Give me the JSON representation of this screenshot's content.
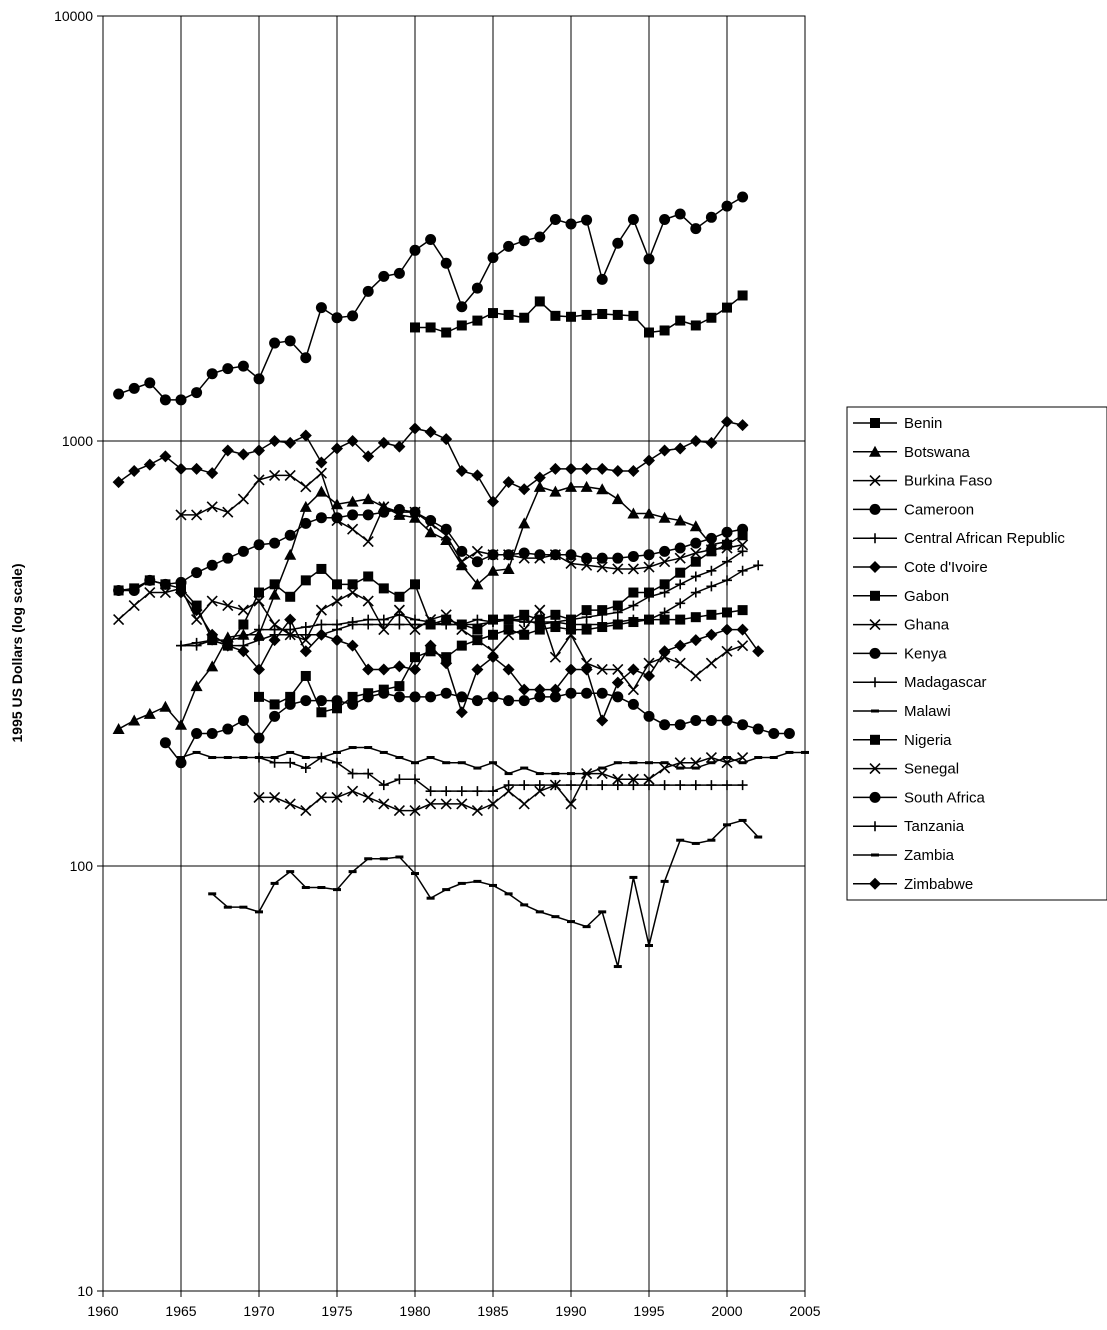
{
  "chart_data": {
    "type": "line",
    "title": "",
    "xlabel": "",
    "ylabel": "1995 US Dollars (log scale)",
    "xlim": [
      1960,
      2005
    ],
    "ylim": [
      10,
      10000
    ],
    "y_scale": "log",
    "x_ticks": [
      "1960",
      "1965",
      "1970",
      "1975",
      "1980",
      "1985",
      "1990",
      "1995",
      "2000",
      "2005"
    ],
    "y_ticks": [
      "10",
      "100",
      "1000",
      "10000"
    ],
    "grid": "vertical every 5 years, horizontal at powers of ten",
    "legend_position": "right",
    "series": [
      {
        "name": "Benin",
        "marker": "square",
        "x_start": 1980,
        "values": [
          1850,
          1850,
          1800,
          1870,
          1920,
          2000,
          1980,
          1950,
          2130,
          1970,
          1960,
          1980,
          1990,
          1980,
          1970,
          1800,
          1820,
          1920,
          1870,
          1950,
          2060,
          2200
        ]
      },
      {
        "name": "Botswana",
        "marker": "triangle",
        "x_start": 1961,
        "values": [
          210,
          220,
          228,
          237,
          215,
          265,
          295,
          345,
          350,
          350,
          435,
          540,
          700,
          760,
          710,
          720,
          730,
          700,
          670,
          660,
          610,
          585,
          510,
          460,
          495,
          500,
          640,
          780,
          760,
          780,
          780,
          770,
          730,
          675,
          675,
          660,
          650,
          630,
          570,
          580
        ]
      },
      {
        "name": "Burkina Faso",
        "marker": "x",
        "x_start": 1965,
        "values": [
          670,
          670,
          700,
          680,
          730,
          810,
          830,
          830,
          780,
          840,
          650,
          620,
          580,
          700,
          680,
          680,
          640,
          600,
          520,
          550,
          540,
          540,
          530,
          530,
          540,
          515,
          510,
          505,
          500,
          500,
          505,
          520,
          530,
          545,
          555,
          560,
          570
        ]
      },
      {
        "name": "Cameroon",
        "marker": "circle",
        "x_start": 1961,
        "values": [
          445,
          445,
          470,
          460,
          465,
          490,
          510,
          530,
          550,
          570,
          575,
          600,
          640,
          660,
          660,
          670,
          670,
          680,
          690,
          680,
          650,
          620,
          550,
          520,
          540,
          540,
          545,
          540,
          540,
          540,
          530,
          530,
          530,
          535,
          540,
          550,
          560,
          575,
          590,
          610,
          620
        ]
      },
      {
        "name": "Central African Republic",
        "marker": "plus",
        "x_start": 1965,
        "values": [
          330,
          335,
          340,
          340,
          345,
          360,
          360,
          360,
          365,
          370,
          370,
          375,
          380,
          380,
          390,
          380,
          375,
          370,
          370,
          370,
          375,
          380,
          375,
          375,
          375,
          370,
          370,
          370,
          375,
          380,
          380,
          395,
          415,
          440,
          455,
          470,
          495,
          510
        ]
      },
      {
        "name": "Cote d'Ivoire",
        "marker": "diamond",
        "x_start": 1961,
        "values": [
          800,
          850,
          880,
          920,
          860,
          860,
          840,
          950,
          930,
          950,
          1000,
          990,
          1030,
          890,
          960,
          1000,
          920,
          990,
          970,
          1070,
          1050,
          1010,
          850,
          830,
          720,
          800,
          770,
          820,
          860,
          860,
          860,
          860,
          850,
          850,
          900,
          950,
          960,
          1000,
          990,
          1110,
          1090
        ]
      },
      {
        "name": "Gabon",
        "marker": "square",
        "x_start": 1961,
        "values": [
          445,
          450,
          470,
          460,
          450,
          410,
          340,
          330,
          370,
          440,
          460,
          430,
          470,
          500,
          460,
          460,
          480,
          450,
          430,
          460,
          370,
          380,
          370,
          360,
          380,
          380,
          390,
          380,
          390,
          380,
          400,
          400,
          410,
          440,
          440,
          460,
          490,
          520,
          550,
          570,
          600
        ]
      },
      {
        "name": "Ghana",
        "marker": "x",
        "x_start": 1961,
        "values": [
          380,
          410,
          440,
          440,
          450,
          380,
          420,
          410,
          400,
          420,
          370,
          350,
          340,
          400,
          420,
          440,
          420,
          360,
          400,
          360,
          380,
          390,
          360,
          340,
          320,
          350,
          360,
          400,
          310,
          350,
          300,
          290,
          290,
          260,
          300,
          310,
          300,
          280,
          300,
          320,
          330
        ]
      },
      {
        "name": "Kenya",
        "marker": "circle",
        "x_start": 1964,
        "values": [
          195,
          175,
          205,
          205,
          210,
          220,
          200,
          225,
          240,
          245,
          245,
          245,
          240,
          250,
          255,
          250,
          250,
          250,
          255,
          250,
          245,
          250,
          245,
          245,
          250,
          250,
          255,
          255,
          255,
          250,
          240,
          225,
          215,
          215,
          220,
          220,
          220,
          215,
          210,
          205,
          205
        ]
      },
      {
        "name": "Madagascar",
        "marker": "plus",
        "x_start": 1970,
        "values": [
          180,
          175,
          175,
          170,
          180,
          175,
          165,
          165,
          155,
          160,
          160,
          150,
          150,
          150,
          150,
          150,
          155,
          155,
          155,
          155,
          155,
          155,
          155,
          155,
          155,
          155,
          155,
          155,
          155,
          155,
          155,
          155
        ]
      },
      {
        "name": "Malawi",
        "marker": "dash",
        "x_start": 1965,
        "values": [
          180,
          185,
          180,
          180,
          180,
          180,
          180,
          185,
          180,
          180,
          185,
          190,
          190,
          185,
          180,
          175,
          180,
          175,
          175,
          170,
          175,
          165,
          170,
          165,
          165,
          165,
          165,
          170,
          175,
          175,
          175,
          175,
          170,
          170,
          175,
          180,
          175,
          180,
          180,
          185,
          185
        ]
      },
      {
        "name": "Nigeria",
        "marker": "square",
        "x_start": 1970,
        "values": [
          250,
          240,
          250,
          280,
          230,
          235,
          250,
          255,
          260,
          265,
          310,
          320,
          310,
          330,
          340,
          350,
          360,
          350,
          360,
          365,
          360,
          360,
          365,
          370,
          375,
          380,
          380,
          380,
          385,
          390,
          395,
          400
        ]
      },
      {
        "name": "Senegal",
        "marker": "x",
        "x_start": 1970,
        "values": [
          145,
          145,
          140,
          135,
          145,
          145,
          150,
          145,
          140,
          135,
          135,
          140,
          140,
          140,
          135,
          140,
          150,
          140,
          150,
          155,
          140,
          165,
          165,
          160,
          160,
          160,
          170,
          175,
          175,
          180,
          175,
          180
        ]
      },
      {
        "name": "South Africa",
        "marker": "circle",
        "x_start": 1961,
        "values": [
          1290,
          1330,
          1370,
          1250,
          1250,
          1300,
          1440,
          1480,
          1500,
          1400,
          1700,
          1720,
          1570,
          2060,
          1950,
          1970,
          2250,
          2440,
          2480,
          2810,
          2980,
          2620,
          2070,
          2290,
          2700,
          2870,
          2960,
          3020,
          3320,
          3240,
          3310,
          2400,
          2920,
          3320,
          2680,
          3320,
          3420,
          3160,
          3360,
          3570,
          3750
        ]
      },
      {
        "name": "Tanzania",
        "marker": "plus",
        "x_start": 1965,
        "values": [
          330,
          330,
          340,
          330,
          330,
          340,
          350,
          350,
          350,
          350,
          360,
          370,
          370,
          370,
          370,
          370,
          370,
          370,
          370,
          380,
          375,
          380,
          380,
          370,
          375,
          380,
          385,
          390,
          395,
          410,
          430,
          440,
          460,
          480,
          495,
          520,
          550
        ]
      },
      {
        "name": "Zambia",
        "marker": "dash",
        "x_start": 1967,
        "values": [
          86,
          80,
          80,
          78,
          91,
          97,
          89,
          89,
          88,
          97,
          104,
          104,
          105,
          96,
          84,
          88,
          91,
          92,
          90,
          86,
          81,
          78,
          76,
          74,
          72,
          78,
          58,
          94,
          65,
          92,
          115,
          113,
          115,
          125,
          128,
          117
        ]
      },
      {
        "name": "Zimbabwe",
        "marker": "diamond",
        "x_start": 1965,
        "values": [
          440,
          400,
          350,
          330,
          320,
          290,
          340,
          380,
          320,
          350,
          340,
          330,
          290,
          290,
          295,
          290,
          330,
          300,
          230,
          290,
          310,
          290,
          260,
          260,
          260,
          290,
          290,
          220,
          270,
          290,
          280,
          320,
          330,
          340,
          350,
          360,
          360,
          320
        ]
      }
    ]
  }
}
